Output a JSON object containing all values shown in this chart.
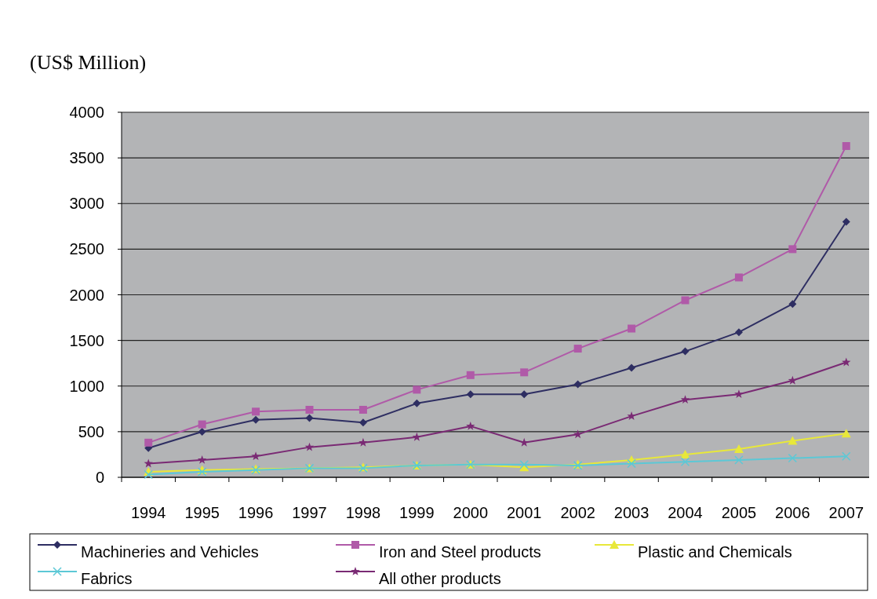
{
  "chart_data": {
    "type": "line",
    "title": "(US$ Million)",
    "categories": [
      "1994",
      "1995",
      "1996",
      "1997",
      "1998",
      "1999",
      "2000",
      "2001",
      "2002",
      "2003",
      "2004",
      "2005",
      "2006",
      "2007"
    ],
    "series": [
      {
        "name": "Machineries and Vehicles",
        "color": "#2e2e62",
        "marker": "diamond",
        "values": [
          320,
          500,
          630,
          650,
          600,
          810,
          910,
          910,
          1020,
          1200,
          1380,
          1590,
          1900,
          2800
        ]
      },
      {
        "name": "Iron and Steel products",
        "color": "#b05aa8",
        "marker": "square",
        "values": [
          380,
          580,
          720,
          740,
          740,
          960,
          1120,
          1150,
          1410,
          1630,
          1940,
          2190,
          2500,
          3630
        ]
      },
      {
        "name": "Plastic and Chemicals",
        "color": "#e8e83a",
        "marker": "triangle",
        "values": [
          60,
          80,
          90,
          100,
          110,
          130,
          140,
          110,
          140,
          190,
          250,
          310,
          400,
          480
        ]
      },
      {
        "name": "Fabrics",
        "color": "#5cc8d6",
        "marker": "cross",
        "values": [
          30,
          60,
          80,
          100,
          100,
          130,
          140,
          140,
          130,
          150,
          170,
          190,
          210,
          230
        ]
      },
      {
        "name": "All other products",
        "color": "#7a2a74",
        "marker": "star",
        "values": [
          150,
          190,
          230,
          330,
          380,
          440,
          560,
          380,
          470,
          670,
          850,
          910,
          1060,
          1260
        ]
      }
    ],
    "ylim": [
      0,
      4000
    ],
    "yticks": [
      0,
      500,
      1000,
      1500,
      2000,
      2500,
      3000,
      3500,
      4000
    ],
    "grid": "y",
    "legend": "bottom"
  }
}
